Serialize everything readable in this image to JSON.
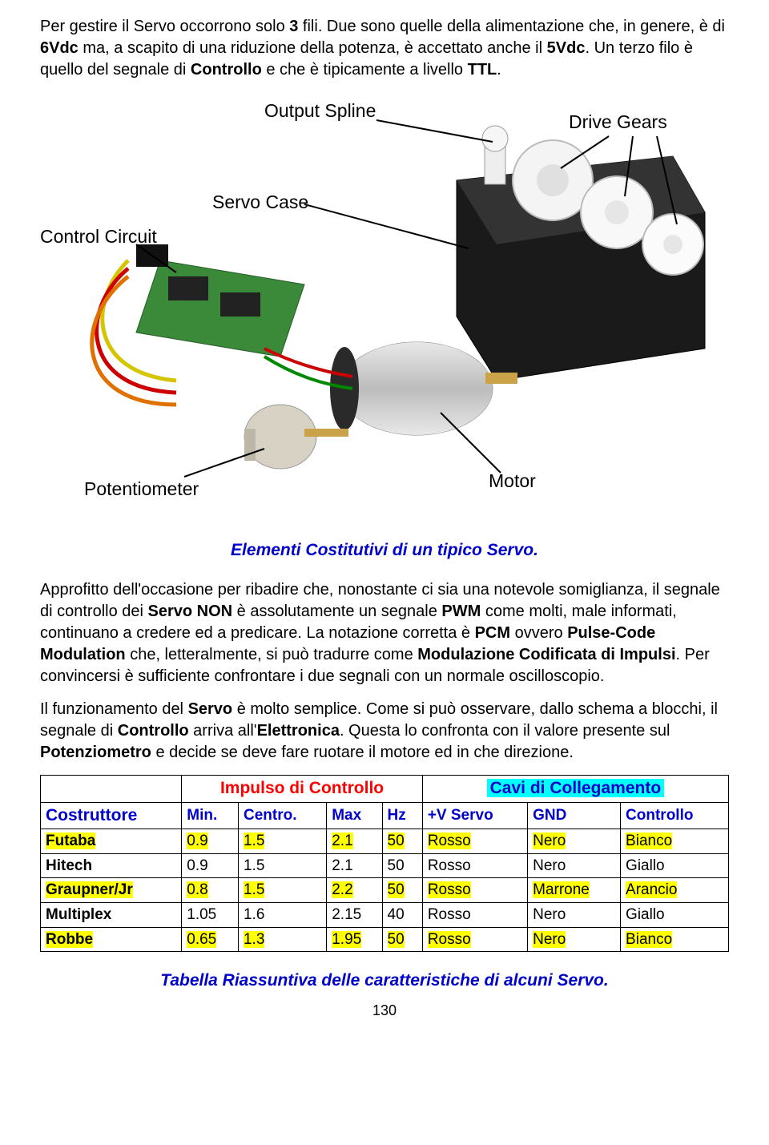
{
  "para1_parts": [
    {
      "t": "Per gestire il Servo occorrono solo ",
      "b": false
    },
    {
      "t": "3",
      "b": true
    },
    {
      "t": " fili.  Due sono quelle della alimentazione che, in genere, è di ",
      "b": false
    },
    {
      "t": "6Vdc",
      "b": true
    },
    {
      "t": " ma, a scapito di una riduzione della potenza, è accettato anche il ",
      "b": false
    },
    {
      "t": "5Vdc",
      "b": true
    },
    {
      "t": ".   Un terzo filo è quello del segnale di ",
      "b": false
    },
    {
      "t": "Controllo",
      "b": true
    },
    {
      "t": "  e che è tipicamente a livello ",
      "b": false
    },
    {
      "t": "TTL",
      "b": true
    },
    {
      "t": ".",
      "b": false
    }
  ],
  "figure": {
    "labels": {
      "output_spline": "Output Spline",
      "drive_gears": "Drive Gears",
      "servo_case": "Servo Case",
      "control_circuit": "Control Circuit",
      "potentiometer": "Potentiometer",
      "motor": "Motor"
    }
  },
  "caption1": "Elementi  Costitutivi   di  un  tipico  Servo.",
  "para2_parts": [
    {
      "t": "Approfitto dell'occasione per ribadire che, nonostante ci sia una notevole somiglianza, il segnale di controllo dei ",
      "b": false
    },
    {
      "t": "Servo  NON",
      "b": true
    },
    {
      "t": " è assolutamente un segnale ",
      "b": false
    },
    {
      "t": "PWM",
      "b": true
    },
    {
      "t": " come molti, male informati, continuano a credere ed a predicare.  La notazione corretta è ",
      "b": false
    },
    {
      "t": "PCM",
      "b": true
    },
    {
      "t": " ovvero ",
      "b": false
    },
    {
      "t": "Pulse-Code  Modulation",
      "b": true
    },
    {
      "t": "   che, letteralmente, si può tradurre come ",
      "b": false
    },
    {
      "t": "Modulazione  Codificata   di Impulsi",
      "b": true
    },
    {
      "t": ".   Per convincersi è sufficiente confrontare i due segnali con un normale oscilloscopio.",
      "b": false
    }
  ],
  "para3_parts": [
    {
      "t": "Il funzionamento del ",
      "b": false
    },
    {
      "t": "Servo",
      "b": true
    },
    {
      "t": "  è molto semplice.  Come si può osservare, dallo schema a blocchi, il segnale di ",
      "b": false
    },
    {
      "t": "Controllo",
      "b": true
    },
    {
      "t": "  arriva all'",
      "b": false
    },
    {
      "t": "Elettronica",
      "b": true
    },
    {
      "t": ".    Questa lo confronta con il valore presente sul ",
      "b": false
    },
    {
      "t": "Potenziometro",
      "b": true
    },
    {
      "t": "   e decide se deve fare ruotare il motore ed in che direzione.",
      "b": false
    }
  ],
  "table": {
    "section_headers": {
      "impulso": "Impulso  di  Controllo",
      "cavi": "Cavi  di  Collegamento"
    },
    "columns": [
      "Costruttore",
      "Min.",
      "Centro.",
      "Max",
      "Hz",
      "+V  Servo",
      "GND",
      "Controllo"
    ],
    "rows": [
      {
        "hl": true,
        "cells": [
          "Futaba",
          "0.9",
          "1.5",
          "2.1",
          "50",
          "Rosso",
          "Nero",
          "Bianco"
        ]
      },
      {
        "hl": false,
        "cells": [
          "Hitech",
          "0.9",
          "1.5",
          "2.1",
          "50",
          "Rosso",
          "Nero",
          "Giallo"
        ]
      },
      {
        "hl": true,
        "cells": [
          "Graupner/Jr",
          "0.8",
          "1.5",
          "2.2",
          "50",
          "Rosso",
          "Marrone",
          "Arancio"
        ]
      },
      {
        "hl": false,
        "cells": [
          "Multiplex",
          "1.05",
          "1.6",
          "2.15",
          "40",
          "Rosso",
          "Nero",
          "Giallo"
        ]
      },
      {
        "hl": true,
        "cells": [
          "Robbe",
          "0.65",
          "1.3",
          "1.95",
          "50",
          "Rosso",
          "Nero",
          "Bianco"
        ]
      }
    ],
    "highlight_color": "#ffff00"
  },
  "caption2": "Tabella  Riassuntiva  delle  caratteristiche    di  alcuni  Servo.",
  "page_number": "130"
}
